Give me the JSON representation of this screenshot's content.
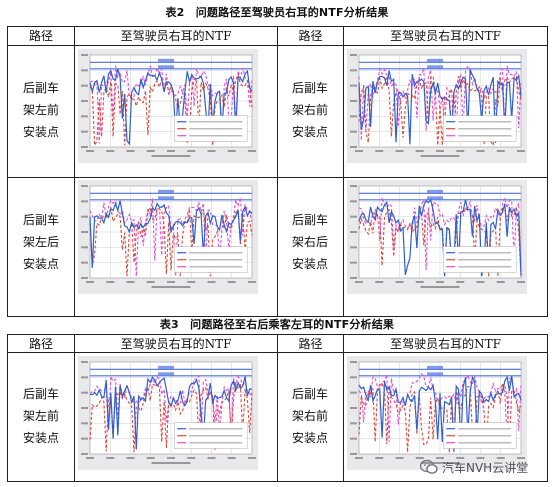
{
  "table2": {
    "caption": "表2　问题路径至驾驶员右耳的NTF分析结果",
    "headers": [
      "路径",
      "至驾驶员右耳的NTF",
      "路径",
      "至驾驶员右耳的NTF"
    ],
    "rows": [
      {
        "left_label": [
          "后副车",
          "架左前",
          "安装点"
        ],
        "right_label": [
          "后副车",
          "架右前",
          "安装点"
        ]
      },
      {
        "left_label": [
          "后副车",
          "架左后",
          "安装点"
        ],
        "right_label": [
          "后副车",
          "架右后",
          "安装点"
        ]
      }
    ]
  },
  "table3": {
    "caption": "表3　问题路径至右后乘客左耳的NTF分析结果",
    "headers": [
      "路径",
      "至驾驶员右耳的NTF",
      "路径",
      "至驾驶员右耳的NTF"
    ],
    "rows": [
      {
        "left_label": [
          "后副车",
          "架左前",
          "安装点"
        ],
        "right_label": [
          "后副车",
          "架右前",
          "安装点"
        ]
      }
    ]
  },
  "watermark": {
    "text": "汽车NVH云讲堂",
    "icon": "wechat-icon"
  },
  "series_colors": {
    "target": "#4a6fe0",
    "blue": "#2f5fd0",
    "red": "#d94a3a",
    "magenta": "#e04fd8"
  }
}
